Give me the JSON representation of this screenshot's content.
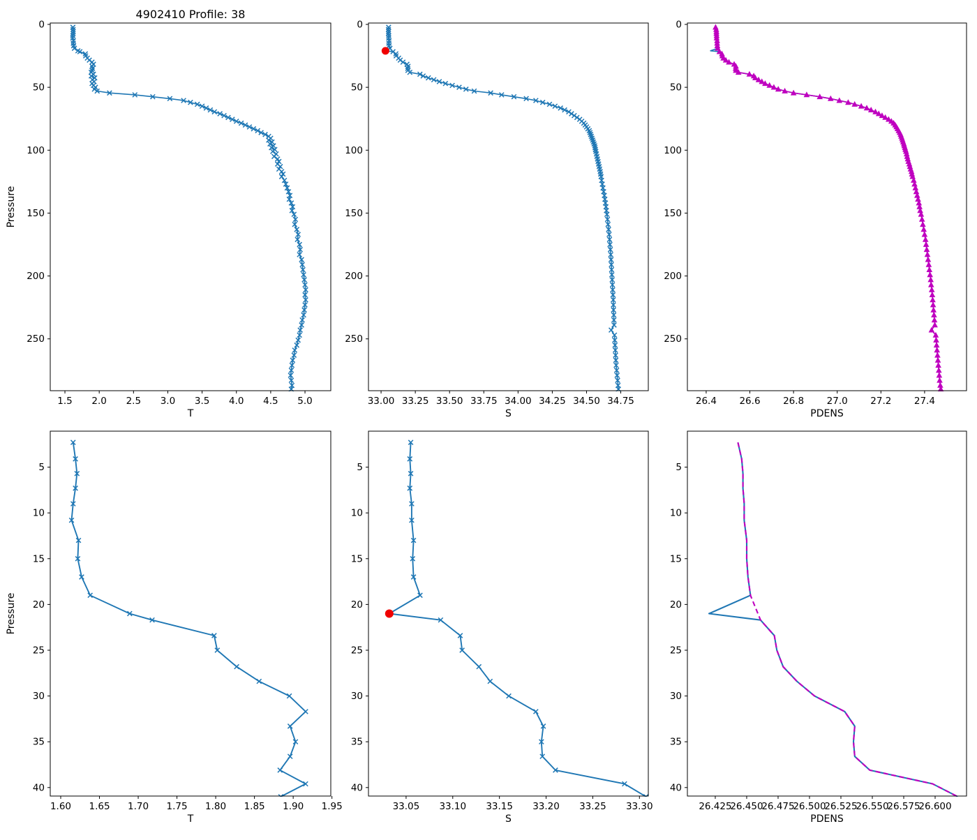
{
  "figure": {
    "title": "4902410 Profile: 38",
    "background": "#ffffff",
    "colors": {
      "profile_blue": "#1f77b4",
      "adjusted_magenta": "#bf00bf",
      "flag_red": "#f00000",
      "axis_black": "#000000"
    }
  },
  "chart_data": {
    "type": "line",
    "orientation": "profile-depth-inverted",
    "profiles": {
      "flagged_index": 10,
      "zoom_points": 24,
      "pressure": [
        2.3,
        4.1,
        5.7,
        7.3,
        9.0,
        10.8,
        13.0,
        15.0,
        17.0,
        19.0,
        21.0,
        21.7,
        23.4,
        25.0,
        26.8,
        28.4,
        30.0,
        31.7,
        33.3,
        35.0,
        36.6,
        38.1,
        39.6,
        41.0,
        42.5,
        44.0,
        45.5,
        47.0,
        48.5,
        50.0,
        51.5,
        53.0,
        54.5,
        56.0,
        57.5,
        59.0,
        60.5,
        62.0,
        63.5,
        65.0,
        66.5,
        68.0,
        69.5,
        71.0,
        72.5,
        74.0,
        75.5,
        77.0,
        78.5,
        80.0,
        81.5,
        83.0,
        84.5,
        86.0,
        87.5,
        89.0,
        90.5,
        92.0,
        93.5,
        95.0,
        96.5,
        98.0,
        99.5,
        101.0,
        103.0,
        105.0,
        107.0,
        109.0,
        111.0,
        113.0,
        115.0,
        117.0,
        119.0,
        121.0,
        124.0,
        127.0,
        130.0,
        133.0,
        136.0,
        139.0,
        142.0,
        145.0,
        148.0,
        151.0,
        155.0,
        159.0,
        163.0,
        167.0,
        171.0,
        175.0,
        179.0,
        183.0,
        187.0,
        191.0,
        195.0,
        199.0,
        203.0,
        207.0,
        211.0,
        215.0,
        219.0,
        223.0,
        227.0,
        231.0,
        235.0,
        239.0,
        243.0,
        247.0,
        251.0,
        255.0,
        259.0,
        263.0,
        267.0,
        271.0,
        275.0,
        279.0,
        283.0,
        287.0,
        290.0
      ],
      "T": [
        1.616,
        1.619,
        1.621,
        1.619,
        1.616,
        1.614,
        1.623,
        1.622,
        1.627,
        1.638,
        1.689,
        1.718,
        1.798,
        1.802,
        1.827,
        1.856,
        1.895,
        1.916,
        1.896,
        1.903,
        1.896,
        1.883,
        1.916,
        1.884,
        1.935,
        1.9,
        1.925,
        1.895,
        1.915,
        1.945,
        1.93,
        1.97,
        2.15,
        2.52,
        2.78,
        3.03,
        3.23,
        3.33,
        3.43,
        3.5,
        3.56,
        3.62,
        3.68,
        3.76,
        3.82,
        3.88,
        3.94,
        4.0,
        4.07,
        4.13,
        4.19,
        4.25,
        4.31,
        4.36,
        4.42,
        4.47,
        4.5,
        4.47,
        4.52,
        4.49,
        4.54,
        4.51,
        4.56,
        4.53,
        4.58,
        4.55,
        4.6,
        4.62,
        4.6,
        4.64,
        4.62,
        4.66,
        4.68,
        4.66,
        4.7,
        4.72,
        4.74,
        4.76,
        4.78,
        4.77,
        4.8,
        4.82,
        4.81,
        4.84,
        4.86,
        4.85,
        4.88,
        4.9,
        4.89,
        4.92,
        4.93,
        4.92,
        4.95,
        4.96,
        4.97,
        4.98,
        4.99,
        5.0,
        5.01,
        5.0,
        5.01,
        5.0,
        4.99,
        4.98,
        4.96,
        4.95,
        4.93,
        4.92,
        4.9,
        4.88,
        4.85,
        4.84,
        4.82,
        4.81,
        4.8,
        4.79,
        4.8,
        4.81,
        4.8
      ],
      "S": [
        33.055,
        33.054,
        33.055,
        33.054,
        33.056,
        33.056,
        33.058,
        33.057,
        33.058,
        33.065,
        33.032,
        33.087,
        33.108,
        33.11,
        33.128,
        33.14,
        33.16,
        33.189,
        33.197,
        33.195,
        33.196,
        33.21,
        33.284,
        33.307,
        33.345,
        33.385,
        33.425,
        33.47,
        33.52,
        33.57,
        33.62,
        33.68,
        33.8,
        33.88,
        33.97,
        34.06,
        34.13,
        34.18,
        34.23,
        34.27,
        34.31,
        34.34,
        34.37,
        34.39,
        34.41,
        34.43,
        34.45,
        34.465,
        34.48,
        34.49,
        34.5,
        34.51,
        34.52,
        34.525,
        34.53,
        34.535,
        34.54,
        34.545,
        34.55,
        34.555,
        34.56,
        34.562,
        34.565,
        34.568,
        34.572,
        34.576,
        34.58,
        34.584,
        34.588,
        34.592,
        34.596,
        34.6,
        34.603,
        34.606,
        34.61,
        34.615,
        34.62,
        34.625,
        34.63,
        34.634,
        34.638,
        34.642,
        34.645,
        34.649,
        34.653,
        34.657,
        34.661,
        34.665,
        34.668,
        34.671,
        34.674,
        34.677,
        34.679,
        34.681,
        34.683,
        34.685,
        34.687,
        34.689,
        34.691,
        34.693,
        34.695,
        34.696,
        34.697,
        34.699,
        34.7,
        34.701,
        34.68,
        34.704,
        34.706,
        34.708,
        34.71,
        34.712,
        34.714,
        34.716,
        34.72,
        34.723,
        34.727,
        34.73,
        34.733
      ],
      "PDENS": [
        26.443,
        26.446,
        26.447,
        26.447,
        26.448,
        26.448,
        26.45,
        26.45,
        26.451,
        26.453,
        26.42,
        26.461,
        26.472,
        26.474,
        26.479,
        26.49,
        26.504,
        26.528,
        26.536,
        26.535,
        26.536,
        26.548,
        26.598,
        26.618,
        26.625,
        26.64,
        26.655,
        26.67,
        26.69,
        26.71,
        26.73,
        26.76,
        26.8,
        26.86,
        26.92,
        26.97,
        27.01,
        27.05,
        27.08,
        27.11,
        27.135,
        27.155,
        27.175,
        27.19,
        27.205,
        27.22,
        27.235,
        27.248,
        27.258,
        27.265,
        27.271,
        27.276,
        27.281,
        27.286,
        27.29,
        27.293,
        27.296,
        27.299,
        27.302,
        27.305,
        27.307,
        27.31,
        27.312,
        27.315,
        27.318,
        27.32,
        27.323,
        27.326,
        27.33,
        27.333,
        27.336,
        27.34,
        27.342,
        27.345,
        27.35,
        27.354,
        27.358,
        27.362,
        27.366,
        27.37,
        27.374,
        27.377,
        27.38,
        27.384,
        27.388,
        27.392,
        27.396,
        27.4,
        27.404,
        27.407,
        27.41,
        27.413,
        27.416,
        27.419,
        27.422,
        27.425,
        27.428,
        27.43,
        27.433,
        27.435,
        27.437,
        27.439,
        27.441,
        27.443,
        27.445,
        27.447,
        27.432,
        27.451,
        27.453,
        27.455,
        27.457,
        27.459,
        27.461,
        27.463,
        27.465,
        27.467,
        27.469,
        27.472,
        27.474
      ]
    },
    "subplots": [
      {
        "id": "t-full",
        "title": "4902410 Profile: 38",
        "xlabel": "T",
        "ylabel": "Pressure",
        "range": "full",
        "pos": [
          72,
          33,
          474,
          560
        ],
        "xlim": [
          1.286,
          5.376
        ],
        "ylim": [
          -1.1,
          291.2
        ],
        "xticks": [
          1.5,
          2.0,
          2.5,
          3.0,
          3.5,
          4.0,
          4.5,
          5.0
        ],
        "xtick_labels": [
          "1.5",
          "2.0",
          "2.5",
          "3.0",
          "3.5",
          "4.0",
          "4.5",
          "5.0"
        ],
        "yticks": [
          0,
          50,
          100,
          150,
          200,
          250
        ],
        "ytick_labels": [
          "0",
          "50",
          "100",
          "150",
          "200",
          "250"
        ],
        "series": [
          {
            "name": "raw-profile",
            "field": "T",
            "color": "#1f77b4",
            "width": 1.6,
            "marker": "x",
            "skip_flagged": false
          }
        ]
      },
      {
        "id": "s-full",
        "title": "",
        "xlabel": "S",
        "ylabel": "",
        "range": "full",
        "pos": [
          528,
          33,
          929,
          560
        ],
        "xlim": [
          32.908,
          34.951
        ],
        "ylim": [
          -1.1,
          291.2
        ],
        "xticks": [
          33.0,
          33.25,
          33.5,
          33.75,
          34.0,
          34.25,
          34.5,
          34.75
        ],
        "xtick_labels": [
          "33.00",
          "33.25",
          "33.50",
          "33.75",
          "34.00",
          "34.25",
          "34.50",
          "34.75"
        ],
        "yticks": [
          0,
          50,
          100,
          150,
          200,
          250
        ],
        "ytick_labels": [
          "0",
          "50",
          "100",
          "150",
          "200",
          "250"
        ],
        "series": [
          {
            "name": "raw-profile",
            "field": "S",
            "color": "#1f77b4",
            "width": 1.6,
            "marker": "x",
            "skip_flagged": false
          }
        ],
        "flag": {
          "field": "S",
          "r": 5.5
        }
      },
      {
        "id": "pdens-full",
        "title": "",
        "xlabel": "PDENS",
        "ylabel": "",
        "range": "full",
        "pos": [
          985,
          33,
          1385,
          560
        ],
        "xlim": [
          26.314,
          27.592
        ],
        "ylim": [
          -1.1,
          291.2
        ],
        "xticks": [
          26.4,
          26.6,
          26.8,
          27.0,
          27.2,
          27.4
        ],
        "xtick_labels": [
          "26.4",
          "26.6",
          "26.8",
          "27.0",
          "27.2",
          "27.4"
        ],
        "yticks": [
          0,
          50,
          100,
          150,
          200,
          250
        ],
        "ytick_labels": [
          "0",
          "50",
          "100",
          "150",
          "200",
          "250"
        ],
        "series": [
          {
            "name": "raw-profile",
            "field": "PDENS",
            "color": "#1f77b4",
            "width": 1.6,
            "marker": null,
            "skip_flagged": false
          },
          {
            "name": "adjusted-profile",
            "field": "PDENS",
            "color": "#bf00bf",
            "width": 1.6,
            "marker": "triangle",
            "skip_flagged": true
          }
        ]
      },
      {
        "id": "t-zoom",
        "title": "",
        "xlabel": "T",
        "ylabel": "Pressure",
        "range": "zoom",
        "pos": [
          72,
          618,
          474,
          1141
        ],
        "xlim": [
          1.5865,
          1.9485
        ],
        "ylim": [
          1.07,
          40.93
        ],
        "xticks": [
          1.6,
          1.65,
          1.7,
          1.75,
          1.8,
          1.85,
          1.9,
          1.95
        ],
        "xtick_labels": [
          "1.60",
          "1.65",
          "1.70",
          "1.75",
          "1.80",
          "1.85",
          "1.90",
          "1.95"
        ],
        "yticks": [
          5,
          10,
          15,
          20,
          25,
          30,
          35,
          40
        ],
        "ytick_labels": [
          "5",
          "10",
          "15",
          "20",
          "25",
          "30",
          "35",
          "40"
        ],
        "series": [
          {
            "name": "raw-profile",
            "field": "T",
            "color": "#1f77b4",
            "width": 1.9,
            "marker": "x",
            "skip_flagged": false
          }
        ]
      },
      {
        "id": "s-zoom",
        "title": "",
        "xlabel": "S",
        "ylabel": "",
        "range": "zoom",
        "pos": [
          528,
          618,
          929,
          1141
        ],
        "xlim": [
          33.0097,
          33.3095
        ],
        "ylim": [
          1.07,
          40.93
        ],
        "xticks": [
          33.05,
          33.1,
          33.15,
          33.2,
          33.25,
          33.3
        ],
        "xtick_labels": [
          "33.05",
          "33.10",
          "33.15",
          "33.20",
          "33.25",
          "33.30"
        ],
        "yticks": [
          5,
          10,
          15,
          20,
          25,
          30,
          35,
          40
        ],
        "ytick_labels": [
          "5",
          "10",
          "15",
          "20",
          "25",
          "30",
          "35",
          "40"
        ],
        "series": [
          {
            "name": "raw-profile",
            "field": "S",
            "color": "#1f77b4",
            "width": 1.9,
            "marker": "x",
            "skip_flagged": false
          }
        ],
        "flag": {
          "field": "S",
          "r": 6.0
        }
      },
      {
        "id": "pdens-zoom",
        "title": "",
        "xlabel": "PDENS",
        "ylabel": "",
        "range": "zoom",
        "pos": [
          985,
          618,
          1385,
          1141
        ],
        "xlim": [
          26.4028,
          26.625
        ],
        "ylim": [
          1.07,
          40.93
        ],
        "xticks": [
          26.425,
          26.45,
          26.475,
          26.5,
          26.525,
          26.55,
          26.575,
          26.6
        ],
        "xtick_labels": [
          "26.425",
          "26.450",
          "26.475",
          "26.500",
          "26.525",
          "26.550",
          "26.575",
          "26.600"
        ],
        "yticks": [
          5,
          10,
          15,
          20,
          25,
          30,
          35,
          40
        ],
        "ytick_labels": [
          "5",
          "10",
          "15",
          "20",
          "25",
          "30",
          "35",
          "40"
        ],
        "series": [
          {
            "name": "raw-profile",
            "field": "PDENS",
            "color": "#1f77b4",
            "width": 2.1,
            "marker": null,
            "skip_flagged": false
          },
          {
            "name": "adjusted-profile",
            "field": "PDENS",
            "color": "#bf00bf",
            "width": 2.1,
            "marker": null,
            "skip_flagged": true,
            "dash": "7 4.5"
          }
        ]
      }
    ]
  }
}
